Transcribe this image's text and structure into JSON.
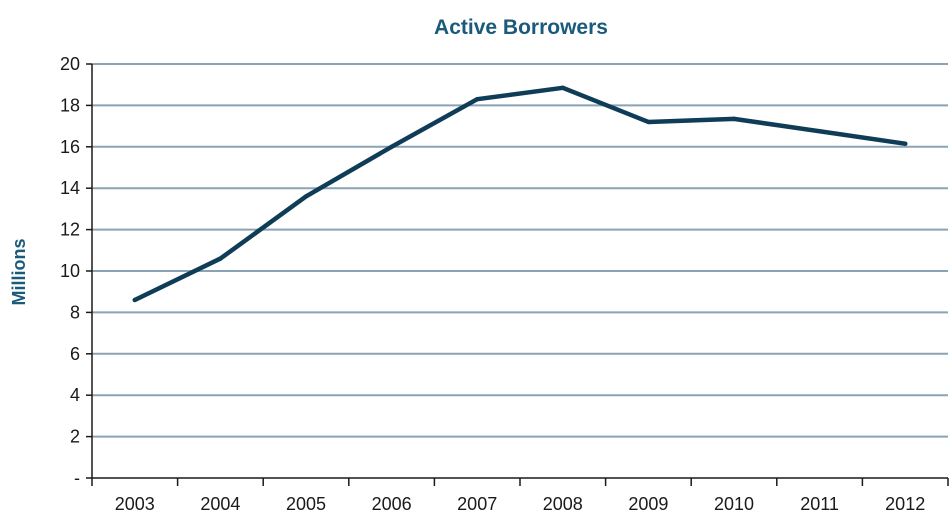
{
  "chart_data": {
    "type": "line",
    "title": "Active Borrowers",
    "ylabel": "Millions",
    "xlabel": "",
    "categories": [
      "2003",
      "2004",
      "2005",
      "2006",
      "2007",
      "2008",
      "2009",
      "2010",
      "2011",
      "2012"
    ],
    "series": [
      {
        "values": [
          8.6,
          10.6,
          13.6,
          16.0,
          18.3,
          18.85,
          17.2,
          17.35,
          16.75,
          16.15
        ]
      }
    ],
    "ylim": [
      0,
      20
    ],
    "yticks": [
      0,
      2,
      4,
      6,
      8,
      10,
      12,
      14,
      16,
      18,
      20
    ],
    "ytick_labels": [
      "-",
      "2",
      "4",
      "6",
      "8",
      "10",
      "12",
      "14",
      "16",
      "18",
      "20"
    ],
    "grid": true,
    "legend": "none",
    "colors": {
      "line": "#0f3d57",
      "title": "#1a5a7a",
      "grid": "#8aa3b5"
    }
  }
}
